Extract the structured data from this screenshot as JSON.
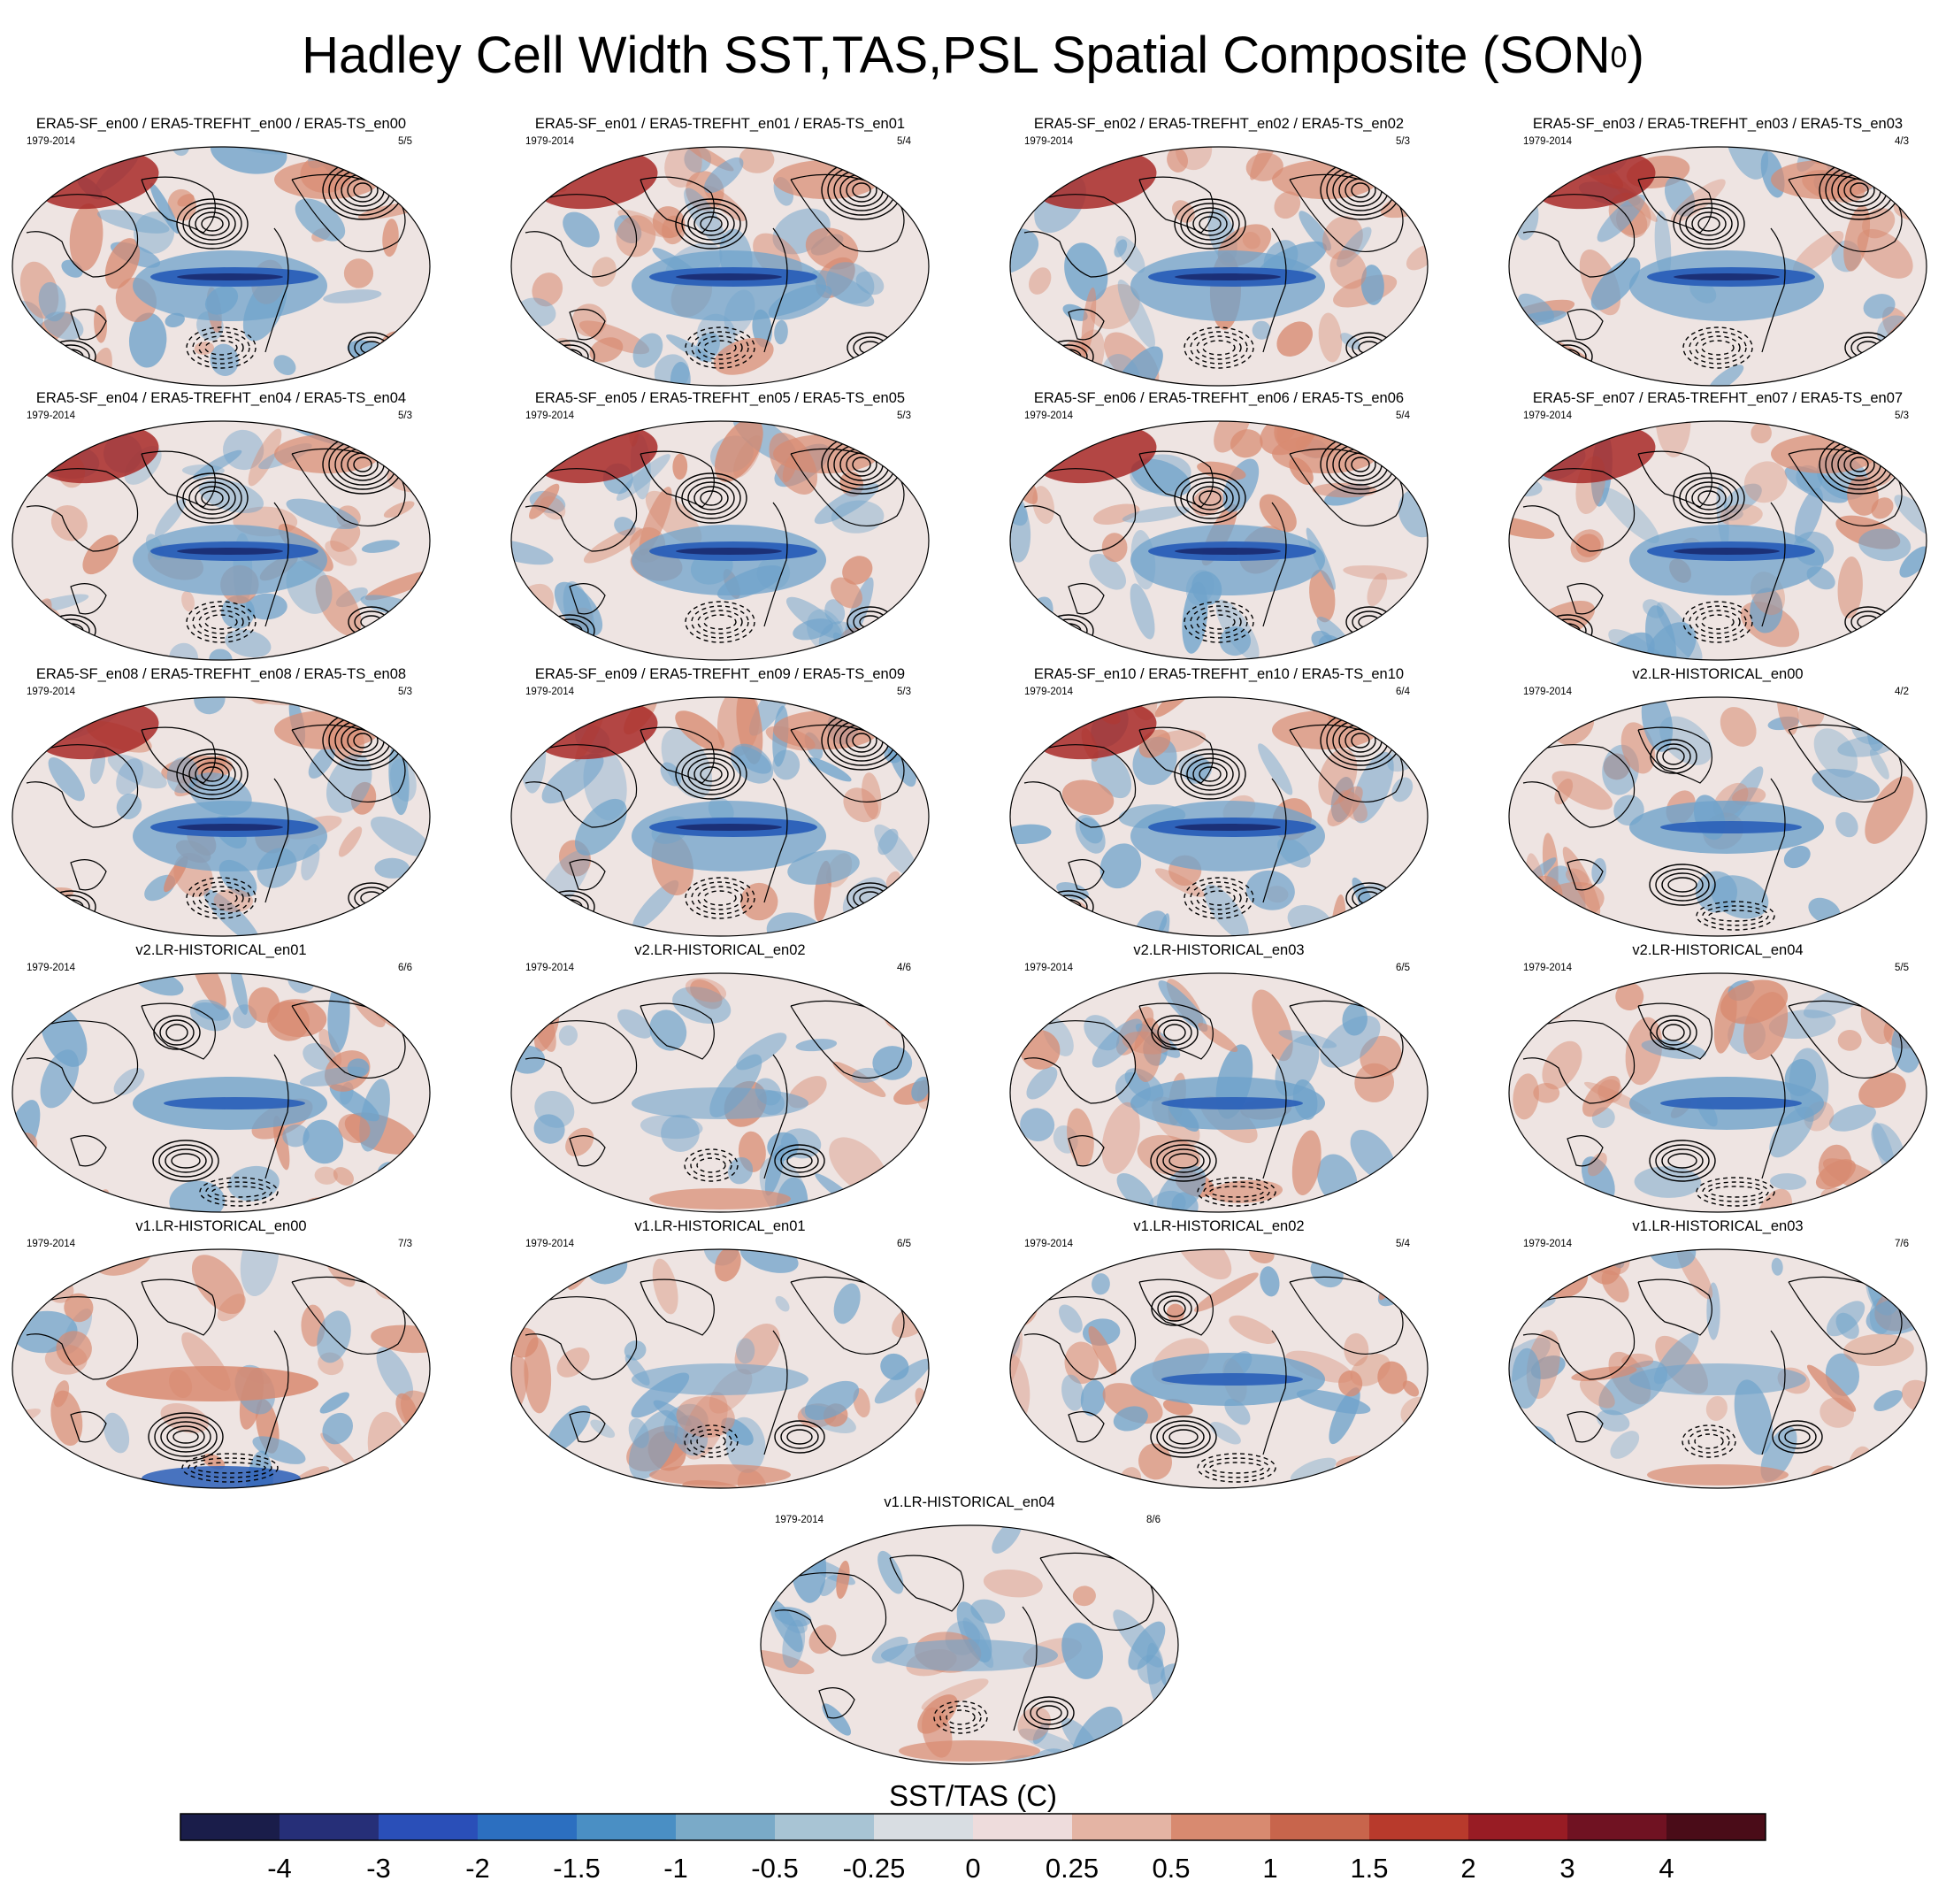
{
  "figure": {
    "title": "Hadley Cell Width SST,TAS,PSL Spatial Composite (SON",
    "title_superscript": "0",
    "title_close": ")"
  },
  "panels": [
    {
      "title": "ERA5-SF_en00 / ERA5-TREFHT_en00 / ERA5-TS_en00",
      "years": "1979-2014",
      "count": "5/5",
      "style": "era5"
    },
    {
      "title": "ERA5-SF_en01 / ERA5-TREFHT_en01 / ERA5-TS_en01",
      "years": "1979-2014",
      "count": "5/4",
      "style": "era5"
    },
    {
      "title": "ERA5-SF_en02 / ERA5-TREFHT_en02 / ERA5-TS_en02",
      "years": "1979-2014",
      "count": "5/3",
      "style": "era5"
    },
    {
      "title": "ERA5-SF_en03 / ERA5-TREFHT_en03 / ERA5-TS_en03",
      "years": "1979-2014",
      "count": "4/3",
      "style": "era5"
    },
    {
      "title": "ERA5-SF_en04 / ERA5-TREFHT_en04 / ERA5-TS_en04",
      "years": "1979-2014",
      "count": "5/3",
      "style": "era5"
    },
    {
      "title": "ERA5-SF_en05 / ERA5-TREFHT_en05 / ERA5-TS_en05",
      "years": "1979-2014",
      "count": "5/3",
      "style": "era5"
    },
    {
      "title": "ERA5-SF_en06 / ERA5-TREFHT_en06 / ERA5-TS_en06",
      "years": "1979-2014",
      "count": "5/4",
      "style": "era5"
    },
    {
      "title": "ERA5-SF_en07 / ERA5-TREFHT_en07 / ERA5-TS_en07",
      "years": "1979-2014",
      "count": "5/3",
      "style": "era5"
    },
    {
      "title": "ERA5-SF_en08 / ERA5-TREFHT_en08 / ERA5-TS_en08",
      "years": "1979-2014",
      "count": "5/3",
      "style": "era5"
    },
    {
      "title": "ERA5-SF_en09 / ERA5-TREFHT_en09 / ERA5-TS_en09",
      "years": "1979-2014",
      "count": "5/3",
      "style": "era5"
    },
    {
      "title": "ERA5-SF_en10 / ERA5-TREFHT_en10 / ERA5-TS_en10",
      "years": "1979-2014",
      "count": "6/4",
      "style": "era5"
    },
    {
      "title": "v2.LR-HISTORICAL_en00",
      "years": "1979-2014",
      "count": "4/2",
      "style": "model_cool"
    },
    {
      "title": "v2.LR-HISTORICAL_en01",
      "years": "1979-2014",
      "count": "6/6",
      "style": "model_cool"
    },
    {
      "title": "v2.LR-HISTORICAL_en02",
      "years": "1979-2014",
      "count": "4/6",
      "style": "model_mixed"
    },
    {
      "title": "v2.LR-HISTORICAL_en03",
      "years": "1979-2014",
      "count": "6/5",
      "style": "model_cool"
    },
    {
      "title": "v2.LR-HISTORICAL_en04",
      "years": "1979-2014",
      "count": "5/5",
      "style": "model_cool"
    },
    {
      "title": "v1.LR-HISTORICAL_en00",
      "years": "1979-2014",
      "count": "7/3",
      "style": "model_warm"
    },
    {
      "title": "v1.LR-HISTORICAL_en01",
      "years": "1979-2014",
      "count": "6/5",
      "style": "model_mixed"
    },
    {
      "title": "v1.LR-HISTORICAL_en02",
      "years": "1979-2014",
      "count": "5/4",
      "style": "model_cool"
    },
    {
      "title": "v1.LR-HISTORICAL_en03",
      "years": "1979-2014",
      "count": "7/6",
      "style": "model_mixed"
    },
    {
      "title": "v1.LR-HISTORICAL_en04",
      "years": "1979-2014",
      "count": "8/6",
      "style": "model_mixed"
    }
  ],
  "colorbar": {
    "label": "SST/TAS (C)",
    "tick_labels": [
      "-4",
      "-3",
      "-2",
      "-1.5",
      "-1",
      "-0.5",
      "-0.25",
      "0",
      "0.25",
      "0.5",
      "1",
      "1.5",
      "2",
      "3",
      "4"
    ],
    "colors": [
      "#1a1d4a",
      "#262f78",
      "#2a4fb8",
      "#2c6fc0",
      "#4a8fc4",
      "#7aaac8",
      "#a8c4d4",
      "#d8dde2",
      "#eedcdc",
      "#e4b4a4",
      "#d88a70",
      "#c8654c",
      "#b83a2c",
      "#981c24",
      "#701222",
      "#4a0c18"
    ]
  },
  "palette": {
    "ocean_cool": "#6fa3cb",
    "deep_cool": "#2a5fb8",
    "warm": "#d88a70",
    "strong_warm": "#a82a28",
    "neutral": "#eee4e2",
    "land_line": "#000000"
  }
}
